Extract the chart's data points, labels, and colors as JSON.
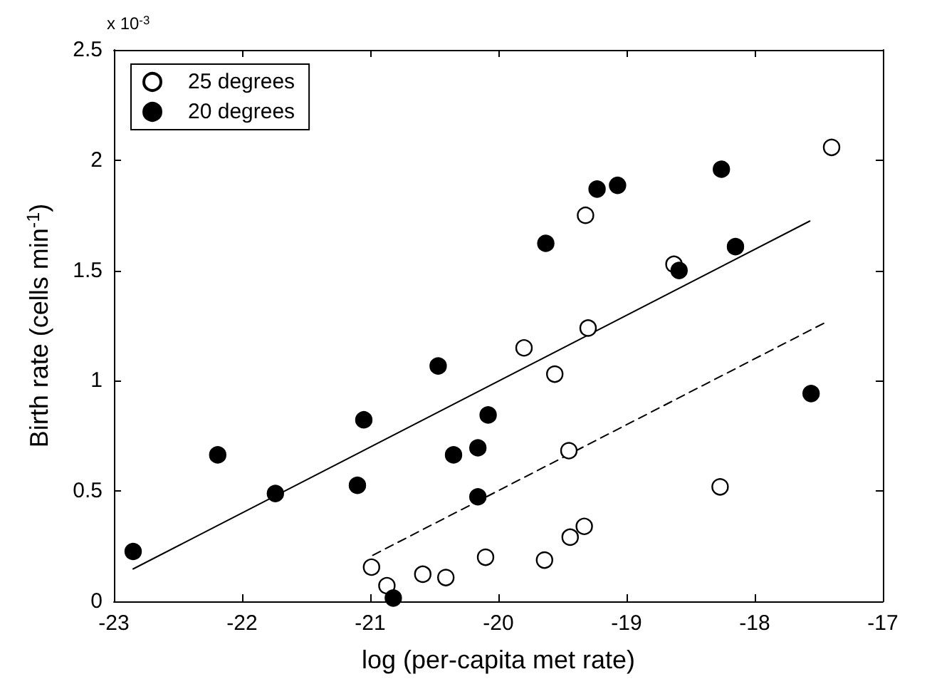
{
  "chart_data": {
    "type": "scatter",
    "xlabel": "log (per-capita met rate)",
    "ylabel": "Birth rate (cells min$^{-1}$)",
    "annotations": [
      "x 10$^{-3}$"
    ],
    "xlim": [
      -23,
      -17
    ],
    "xticks": [
      -23,
      -22,
      -21,
      -20,
      -19,
      -18,
      -17
    ],
    "ylim": [
      0,
      2.5
    ],
    "yticks": [
      0,
      0.5,
      1,
      1.5,
      2,
      2.5
    ],
    "grid": false,
    "legend": "top left",
    "marker": "circle",
    "series": [
      {
        "name": "25 degrees",
        "color": "#ffffff",
        "x": [
          -20.99,
          -20.87,
          -20.59,
          -20.41,
          -20.1,
          -19.64,
          -19.44,
          -19.33,
          -19.45,
          -19.56,
          -19.8,
          -19.3,
          -19.32,
          -18.63,
          -18.27,
          -17.4
        ],
        "values": [
          0.155,
          0.071,
          0.123,
          0.108,
          0.2,
          0.187,
          0.291,
          0.34,
          0.683,
          1.03,
          1.149,
          1.239,
          1.75,
          1.528,
          0.519,
          2.058
        ]
      },
      {
        "name": "20 degrees",
        "color": "#000000",
        "x": [
          -22.85,
          -22.19,
          -21.74,
          -21.1,
          -21.05,
          -20.82,
          -20.47,
          -20.35,
          -20.16,
          -20.16,
          -20.08,
          -19.63,
          -19.23,
          -19.07,
          -18.26,
          -18.15,
          -18.59,
          -17.56
        ],
        "values": [
          0.226,
          0.664,
          0.489,
          0.526,
          0.823,
          0.015,
          1.067,
          0.664,
          0.696,
          0.474,
          0.845,
          1.623,
          1.869,
          1.886,
          1.959,
          1.608,
          1.5,
          0.942
        ]
      },
      {
        "type": "line",
        "color": "#000000",
        "marker": "none",
        "line_style": "solid",
        "x": [
          -22.85,
          -17.57
        ],
        "values": [
          0.147,
          1.724
        ]
      },
      {
        "type": "line",
        "color": "#000000",
        "marker": "none",
        "line_style": "dashed",
        "x": [
          -20.98,
          -17.44
        ],
        "values": [
          0.209,
          1.267
        ]
      }
    ]
  }
}
